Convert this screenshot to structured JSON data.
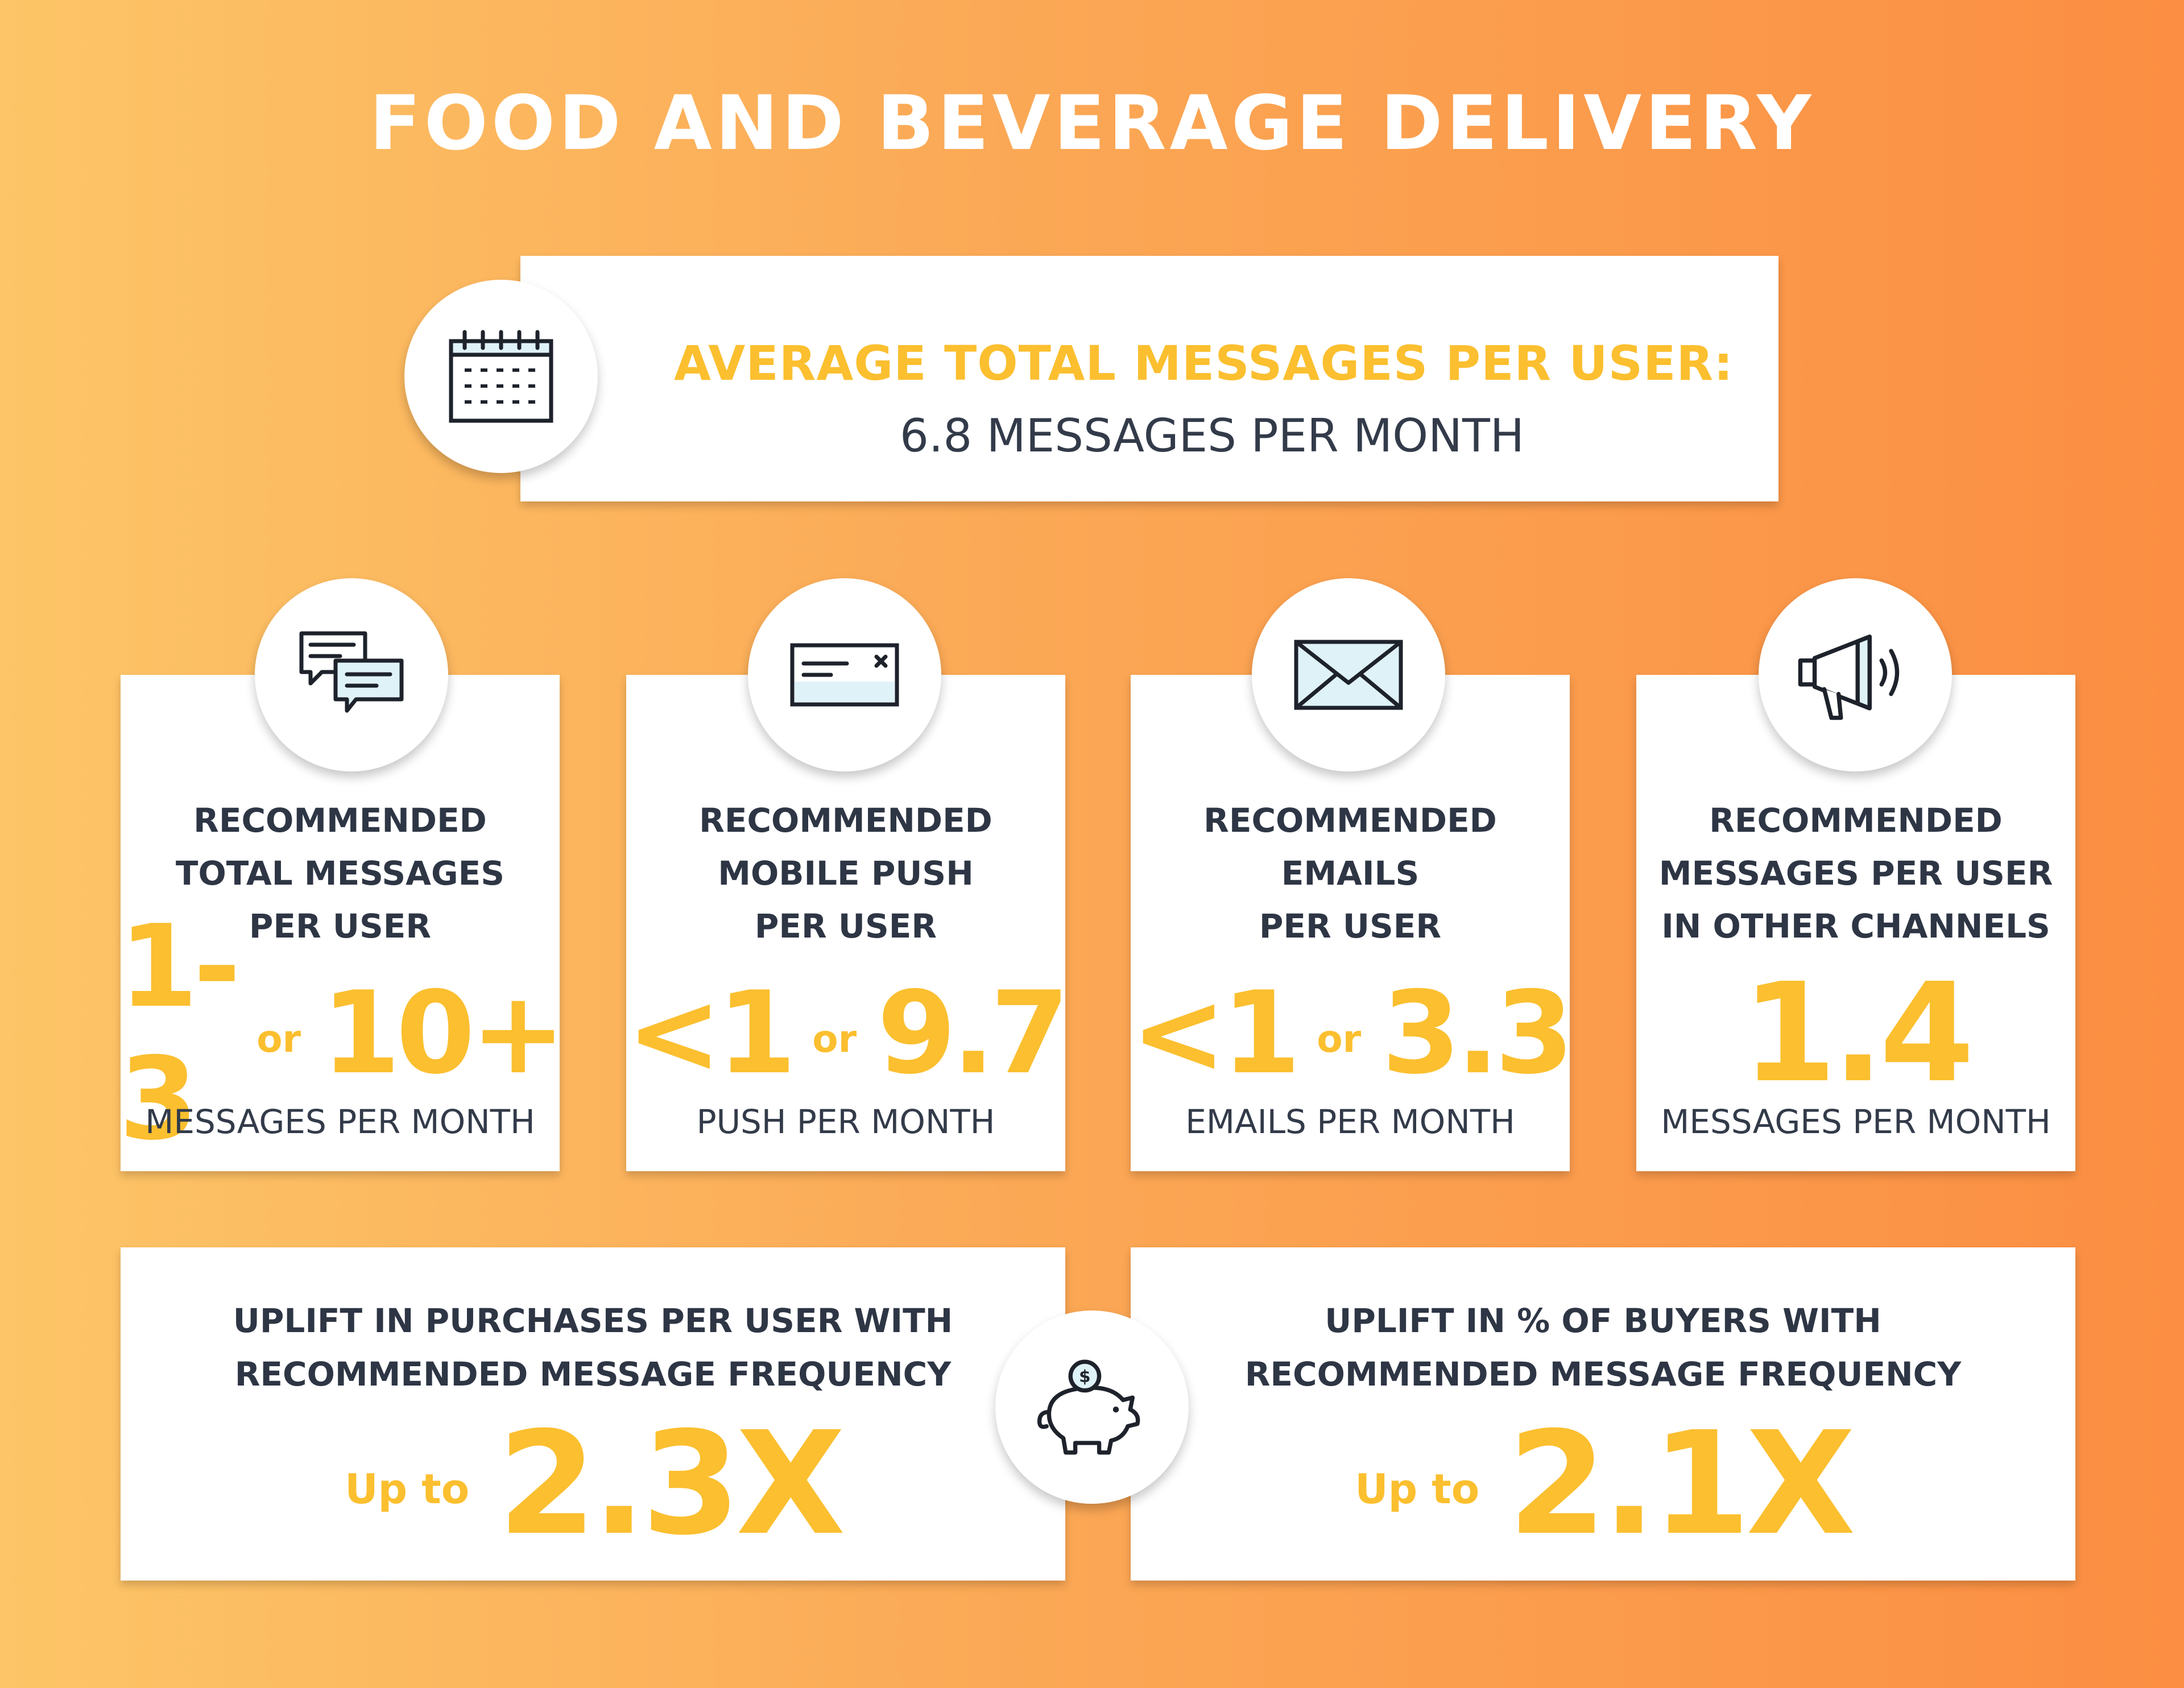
{
  "title": "FOOD AND BEVERAGE DELIVERY",
  "average": {
    "label": "AVERAGE TOTAL MESSAGES PER USER:",
    "value": "6.8 MESSAGES PER MONTH",
    "icon": "calendar-icon"
  },
  "stats": [
    {
      "icon": "chat-bubbles-icon",
      "label": [
        "RECOMMENDED",
        "TOTAL MESSAGES",
        "PER USER"
      ],
      "value_a": "1-3",
      "or": "or",
      "value_b": "10+",
      "unit": "MESSAGES PER MONTH"
    },
    {
      "icon": "push-notification-icon",
      "label": [
        "RECOMMENDED",
        "MOBILE PUSH",
        "PER USER"
      ],
      "value_a": "<1",
      "or": "or",
      "value_b": "9.7",
      "unit": "PUSH PER MONTH"
    },
    {
      "icon": "envelope-icon",
      "label": [
        "RECOMMENDED",
        "EMAILS",
        "PER USER"
      ],
      "value_a": "<1",
      "or": "or",
      "value_b": "3.3",
      "unit": "EMAILS PER MONTH"
    },
    {
      "icon": "megaphone-icon",
      "label": [
        "RECOMMENDED",
        "MESSAGES PER USER",
        "IN OTHER CHANNELS"
      ],
      "value": "1.4",
      "unit": "MESSAGES PER MONTH"
    }
  ],
  "uplifts": [
    {
      "label": [
        "UPLIFT IN PURCHASES PER USER WITH",
        "RECOMMENDED MESSAGE FREQUENCY"
      ],
      "prefix": "Up to",
      "value": "2.3X"
    },
    {
      "label": [
        "UPLIFT IN % OF BUYERS WITH",
        "RECOMMENDED MESSAGE FREQUENCY"
      ],
      "prefix": "Up to",
      "value": "2.1X"
    }
  ],
  "uplift_icon": "piggy-bank-icon",
  "colors": {
    "accent": "#fbbf2f",
    "text_dark": "#2e3645",
    "icon_fill": "#dff2f7",
    "gradient_start": "#fdc567",
    "gradient_end": "#fb8e42"
  }
}
